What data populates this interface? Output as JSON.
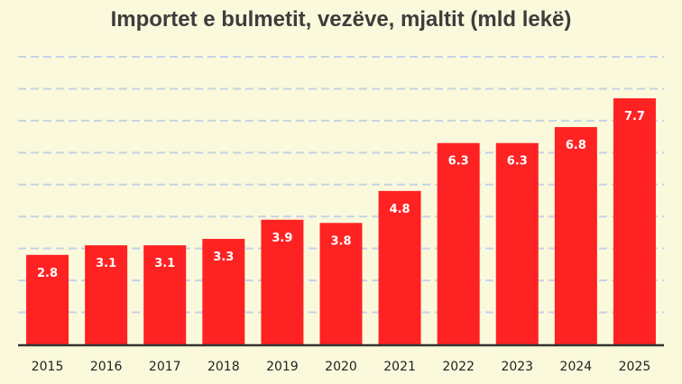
{
  "chart_data": {
    "type": "bar",
    "title": "Importet e bulmetit, vezëve, mjaltit (mld lekë)",
    "categories": [
      "2015",
      "2016",
      "2017",
      "2018",
      "2019",
      "2020",
      "2021",
      "2022",
      "2023",
      "2024",
      "2025"
    ],
    "values": [
      2.8,
      3.1,
      3.1,
      3.3,
      3.9,
      3.8,
      4.8,
      6.3,
      6.3,
      6.8,
      7.7
    ],
    "data_labels": [
      "2.8",
      "3.1",
      "3.1",
      "3.3",
      "3.9",
      "3.8",
      "4.8",
      "6.3",
      "6.3",
      "6.8",
      "7.7"
    ],
    "ylim": [
      0,
      9
    ],
    "grid": true,
    "bar_color": "#ff2222",
    "grid_color": "#c5d2e6",
    "background_color": "#fbf9dc"
  }
}
